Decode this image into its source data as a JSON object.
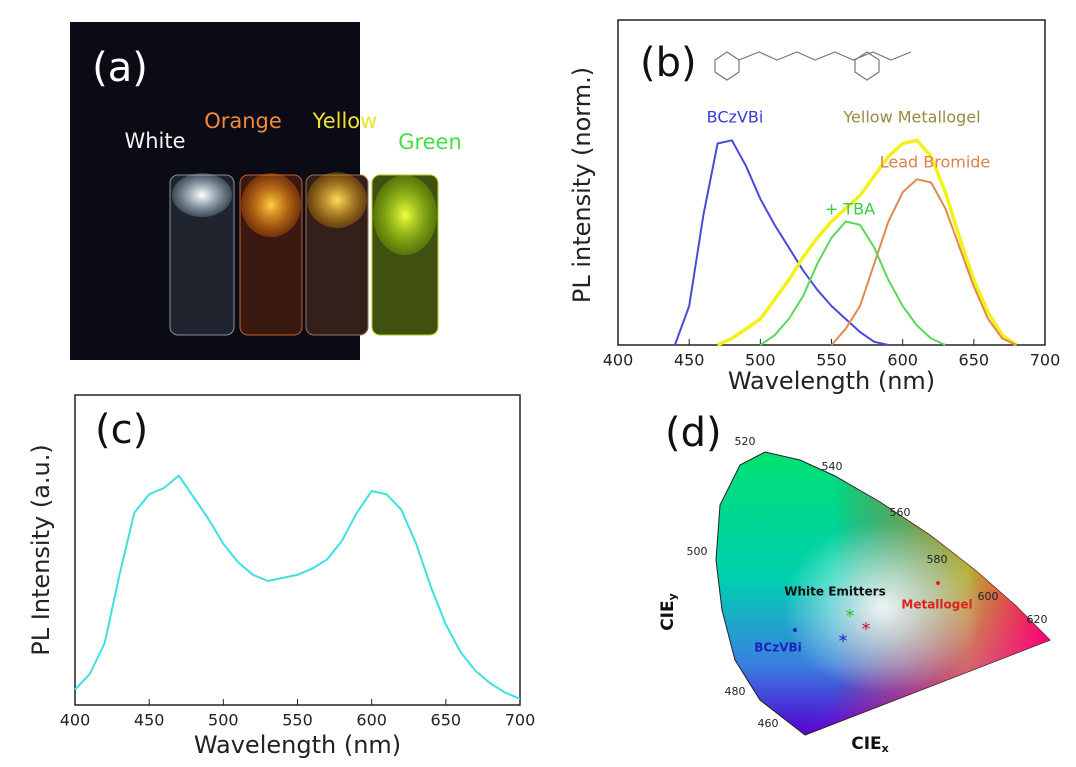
{
  "panel_a": {
    "label": "(a)",
    "vials": [
      "White",
      "Orange",
      "Yellow",
      "Green"
    ]
  },
  "chart_data": [
    {
      "type": "line",
      "panel_label": "(b)",
      "x_label": "Wavelength (nm)",
      "y_label": "PL intensity (norm.)",
      "x": [
        440,
        450,
        460,
        470,
        480,
        490,
        500,
        510,
        520,
        530,
        540,
        550,
        560,
        570,
        580,
        590,
        600,
        610,
        620,
        630,
        640,
        650,
        660,
        670,
        680
      ],
      "xlim": [
        400,
        700
      ],
      "xticks": [
        400,
        450,
        500,
        550,
        600,
        650,
        700
      ],
      "ylim": [
        0,
        1
      ],
      "series": [
        {
          "name": "BCzVBi",
          "color": "#4a4ad8",
          "label_color": "#3a3ad0",
          "values": [
            0,
            0.12,
            0.4,
            0.62,
            0.63,
            0.55,
            0.45,
            0.37,
            0.3,
            0.23,
            0.17,
            0.12,
            0.08,
            0.04,
            0.01,
            0,
            null,
            null,
            null,
            null,
            null,
            null,
            null,
            null,
            null
          ]
        },
        {
          "name": "Yellow Metallogel",
          "color": "#f2f21a",
          "label_color": "#9a8a40",
          "values": [
            null,
            null,
            null,
            0,
            0.02,
            0.05,
            0.08,
            0.14,
            0.2,
            0.27,
            0.33,
            0.38,
            0.42,
            0.46,
            0.52,
            0.58,
            0.62,
            0.63,
            0.58,
            0.47,
            0.33,
            0.2,
            0.1,
            0.03,
            0
          ]
        },
        {
          "name": "Lead Bromide",
          "color": "#e08a50",
          "label_color": "#e0804a",
          "values": [
            null,
            null,
            null,
            null,
            null,
            null,
            null,
            null,
            null,
            null,
            null,
            0,
            0.05,
            0.12,
            0.25,
            0.38,
            0.47,
            0.51,
            0.5,
            0.42,
            0.3,
            0.18,
            0.08,
            0.02,
            0
          ]
        },
        {
          "name": "+ TBA",
          "color": "#5ad85a",
          "label_color": "#3ccc3c",
          "values": [
            null,
            null,
            null,
            null,
            null,
            null,
            0,
            0.03,
            0.08,
            0.15,
            0.25,
            0.33,
            0.38,
            0.37,
            0.3,
            0.2,
            0.12,
            0.06,
            0.02,
            0,
            null,
            null,
            null,
            null,
            null
          ]
        }
      ]
    },
    {
      "type": "line",
      "panel_label": "(c)",
      "x_label": "Wavelength (nm)",
      "y_label": "PL Intensity (a.u.)",
      "x": [
        400,
        410,
        420,
        430,
        440,
        450,
        460,
        470,
        480,
        490,
        500,
        510,
        520,
        530,
        540,
        550,
        560,
        570,
        580,
        590,
        600,
        610,
        620,
        630,
        640,
        650,
        660,
        670,
        680,
        690,
        700
      ],
      "xlim": [
        400,
        700
      ],
      "xticks": [
        400,
        450,
        500,
        550,
        600,
        650,
        700
      ],
      "ylim": [
        0,
        1
      ],
      "series": [
        {
          "color": "#3ee0e0",
          "values": [
            0.05,
            0.1,
            0.2,
            0.42,
            0.62,
            0.68,
            0.7,
            0.74,
            0.67,
            0.6,
            0.52,
            0.46,
            0.42,
            0.4,
            0.41,
            0.42,
            0.44,
            0.47,
            0.53,
            0.62,
            0.69,
            0.68,
            0.63,
            0.52,
            0.38,
            0.26,
            0.17,
            0.11,
            0.07,
            0.04,
            0.02
          ]
        }
      ]
    }
  ],
  "panel_d": {
    "label": "(d)",
    "wavelengths": [
      "520",
      "540",
      "560",
      "580",
      "600",
      "620",
      "500",
      "480",
      "460"
    ],
    "annotations": [
      "White Emitters",
      "Metallogel",
      "BCzVBi"
    ],
    "x_axis": {
      "base": "CIE",
      "sub": "x"
    },
    "y_axis": {
      "base": "CIE",
      "sub": "y"
    }
  }
}
